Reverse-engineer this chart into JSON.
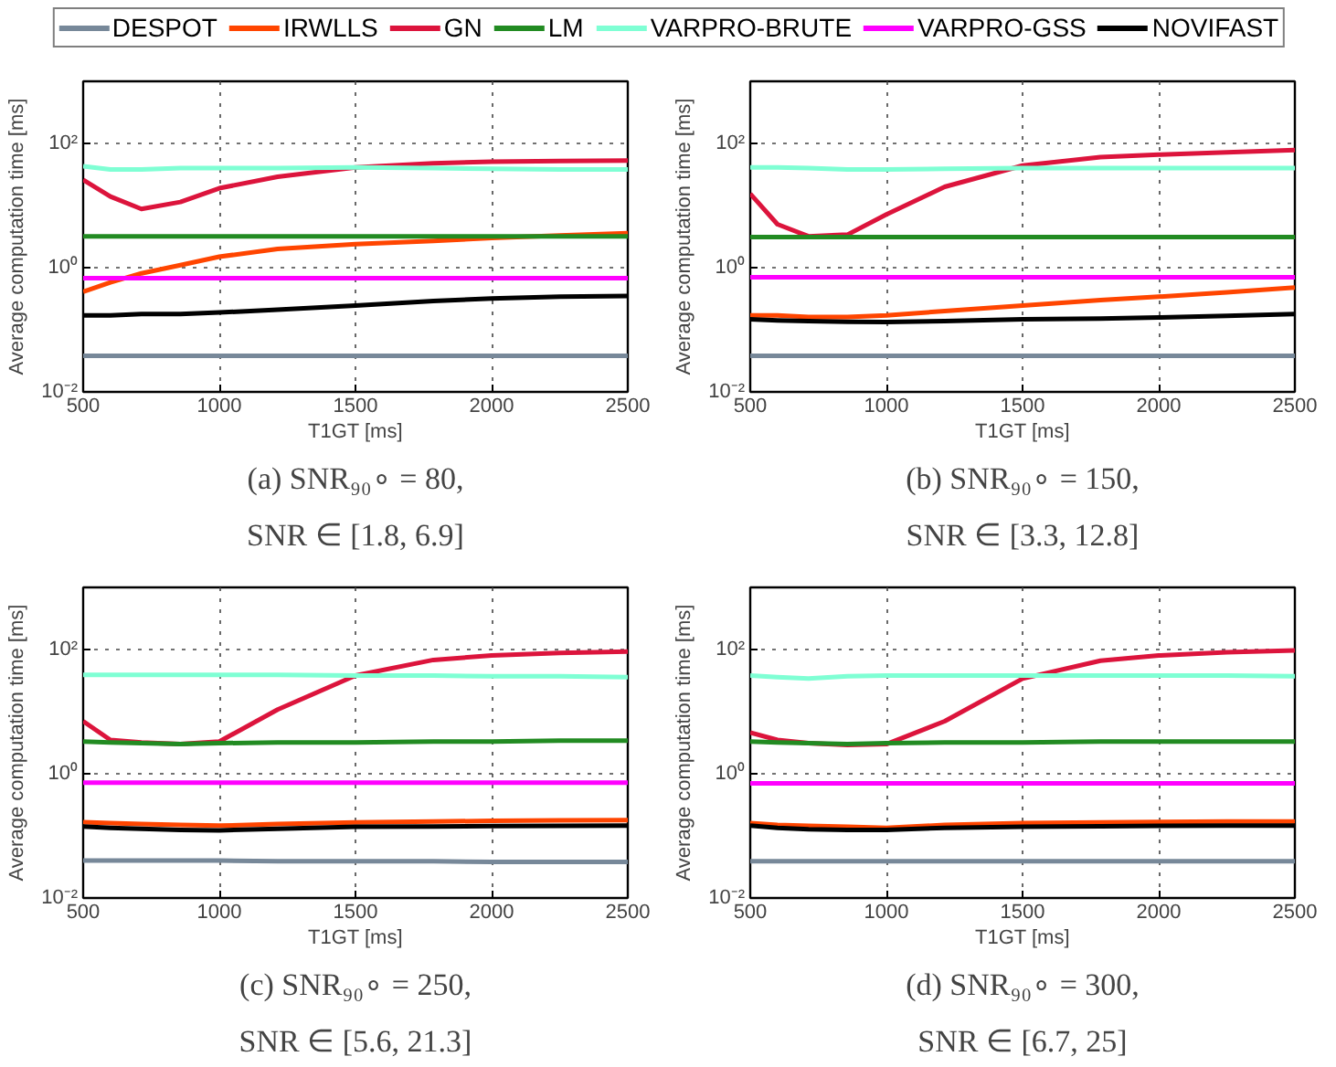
{
  "chart_data": [
    {
      "type": "line",
      "title": "(a) SNR₉₀∘ = 80,",
      "subtitle": "SNR ∈ [1.8, 6.9]",
      "xlabel": "T1GT [ms]",
      "ylabel": "Average computation time [ms]",
      "log": "y",
      "grid": true,
      "legend": "top",
      "line_style": "solid",
      "xlim": [
        500,
        2500
      ],
      "xticks": [
        500,
        1000,
        1500,
        2000,
        2500
      ],
      "ylim": [
        0.01,
        1000
      ],
      "yticks": [
        {
          "value": 0.01,
          "label": "10⁻²"
        },
        {
          "value": 1,
          "label": "10⁰"
        },
        {
          "value": 100,
          "label": "10²"
        }
      ],
      "x": [
        500,
        600,
        714,
        857,
        1000,
        1214,
        1500,
        1786,
        2000,
        2250,
        2500
      ],
      "series": [
        {
          "name": "DESPOT",
          "color": "#778899",
          "values": [
            0.038,
            0.038,
            0.038,
            0.038,
            0.038,
            0.038,
            0.038,
            0.038,
            0.038,
            0.038,
            0.038
          ]
        },
        {
          "name": "IRWLLS",
          "color": "#ff4500",
          "values": [
            0.41,
            0.58,
            0.81,
            1.1,
            1.5,
            2.0,
            2.4,
            2.7,
            3.0,
            3.3,
            3.6
          ]
        },
        {
          "name": "GN",
          "color": "#dc143c",
          "values": [
            26,
            14,
            8.8,
            11.4,
            19,
            29,
            41,
            48,
            51,
            52,
            53
          ]
        },
        {
          "name": "LM",
          "color": "#228b22",
          "values": [
            3.2,
            3.2,
            3.2,
            3.2,
            3.2,
            3.2,
            3.2,
            3.2,
            3.2,
            3.2,
            3.2
          ]
        },
        {
          "name": "VARPRO-BRUTE",
          "color": "#7fffd4",
          "values": [
            43,
            38,
            38,
            40,
            40,
            40,
            41,
            40,
            39,
            38,
            38
          ]
        },
        {
          "name": "VARPRO-GSS",
          "color": "#ff00ff",
          "values": [
            0.68,
            0.68,
            0.68,
            0.68,
            0.68,
            0.68,
            0.68,
            0.68,
            0.68,
            0.68,
            0.68
          ]
        },
        {
          "name": "NOVIFAST",
          "color": "#000000",
          "values": [
            0.17,
            0.17,
            0.18,
            0.18,
            0.19,
            0.21,
            0.245,
            0.29,
            0.32,
            0.34,
            0.35
          ]
        }
      ]
    },
    {
      "type": "line",
      "title": "(b) SNR₉₀∘ = 150,",
      "subtitle": "SNR ∈ [3.3, 12.8]",
      "xlabel": "T1GT [ms]",
      "ylabel": "Average computation time [ms]",
      "log": "y",
      "grid": true,
      "line_style": "solid",
      "xlim": [
        500,
        2500
      ],
      "xticks": [
        500,
        1000,
        1500,
        2000,
        2500
      ],
      "ylim": [
        0.01,
        1000
      ],
      "yticks": [
        {
          "value": 0.01,
          "label": "10⁻²"
        },
        {
          "value": 1,
          "label": "10⁰"
        },
        {
          "value": 100,
          "label": "10²"
        }
      ],
      "x": [
        500,
        600,
        714,
        857,
        1000,
        1214,
        1500,
        1786,
        2000,
        2250,
        2500
      ],
      "series": [
        {
          "color": "#778899",
          "values": [
            0.038,
            0.038,
            0.038,
            0.038,
            0.038,
            0.038,
            0.038,
            0.038,
            0.038,
            0.038,
            0.038
          ]
        },
        {
          "color": "#ff4500",
          "values": [
            0.17,
            0.17,
            0.16,
            0.16,
            0.17,
            0.2,
            0.245,
            0.3,
            0.34,
            0.4,
            0.48
          ]
        },
        {
          "color": "#dc143c",
          "values": [
            15.5,
            5,
            3.2,
            3.4,
            7.2,
            20,
            44,
            60,
            66,
            72,
            78
          ]
        },
        {
          "color": "#228b22",
          "values": [
            3.1,
            3.1,
            3.1,
            3.1,
            3.1,
            3.1,
            3.1,
            3.1,
            3.1,
            3.1,
            3.1
          ]
        },
        {
          "color": "#7fffd4",
          "values": [
            41,
            41,
            40,
            38,
            38,
            39,
            40,
            40,
            40,
            40,
            40
          ]
        },
        {
          "color": "#ff00ff",
          "values": [
            0.7,
            0.7,
            0.7,
            0.7,
            0.7,
            0.7,
            0.7,
            0.7,
            0.7,
            0.7,
            0.7
          ]
        },
        {
          "color": "#000000",
          "values": [
            0.147,
            0.142,
            0.138,
            0.135,
            0.133,
            0.138,
            0.147,
            0.152,
            0.158,
            0.168,
            0.18
          ]
        }
      ]
    },
    {
      "type": "line",
      "title": "(c) SNR₉₀∘ = 250,",
      "subtitle": "SNR ∈ [5.6, 21.3]",
      "xlabel": "T1GT [ms]",
      "ylabel": "Average computation time [ms]",
      "log": "y",
      "grid": true,
      "line_style": "solid",
      "xlim": [
        500,
        2500
      ],
      "xticks": [
        500,
        1000,
        1500,
        2000,
        2500
      ],
      "ylim": [
        0.01,
        1000
      ],
      "yticks": [
        {
          "value": 0.01,
          "label": "10⁻²"
        },
        {
          "value": 1,
          "label": "10⁰"
        },
        {
          "value": 100,
          "label": "10²"
        }
      ],
      "x": [
        500,
        600,
        714,
        857,
        1000,
        1214,
        1500,
        1786,
        2000,
        2250,
        2500
      ],
      "series": [
        {
          "color": "#778899",
          "values": [
            0.04,
            0.04,
            0.04,
            0.04,
            0.04,
            0.039,
            0.039,
            0.039,
            0.038,
            0.038,
            0.038
          ]
        },
        {
          "color": "#ff4500",
          "values": [
            0.166,
            0.16,
            0.155,
            0.15,
            0.146,
            0.155,
            0.165,
            0.17,
            0.175,
            0.178,
            0.18
          ]
        },
        {
          "color": "#dc143c",
          "values": [
            7,
            3.5,
            3.2,
            3.0,
            3.3,
            10.8,
            38,
            68,
            80,
            88,
            93
          ]
        },
        {
          "color": "#228b22",
          "values": [
            3.3,
            3.2,
            3.1,
            3.0,
            3.1,
            3.2,
            3.2,
            3.3,
            3.3,
            3.4,
            3.4
          ]
        },
        {
          "color": "#7fffd4",
          "values": [
            39,
            39,
            39,
            39,
            39,
            39,
            38,
            38,
            37,
            37,
            36
          ]
        },
        {
          "color": "#ff00ff",
          "values": [
            0.72,
            0.72,
            0.72,
            0.72,
            0.72,
            0.72,
            0.72,
            0.72,
            0.72,
            0.72,
            0.72
          ]
        },
        {
          "color": "#000000",
          "values": [
            0.142,
            0.135,
            0.13,
            0.125,
            0.123,
            0.13,
            0.14,
            0.142,
            0.144,
            0.145,
            0.146
          ]
        }
      ]
    },
    {
      "type": "line",
      "title": "(d) SNR₉₀∘ = 300,",
      "subtitle": "SNR ∈ [6.7, 25]",
      "xlabel": "T1GT [ms]",
      "ylabel": "Average computation time [ms]",
      "log": "y",
      "grid": true,
      "line_style": "solid",
      "xlim": [
        500,
        2500
      ],
      "xticks": [
        500,
        1000,
        1500,
        2000,
        2500
      ],
      "ylim": [
        0.01,
        1000
      ],
      "yticks": [
        {
          "value": 0.01,
          "label": "10⁻²"
        },
        {
          "value": 1,
          "label": "10⁰"
        },
        {
          "value": 100,
          "label": "10²"
        }
      ],
      "x": [
        500,
        600,
        714,
        857,
        1000,
        1214,
        1500,
        1786,
        2000,
        2250,
        2500
      ],
      "series": [
        {
          "color": "#778899",
          "values": [
            0.039,
            0.039,
            0.039,
            0.039,
            0.039,
            0.039,
            0.039,
            0.039,
            0.039,
            0.039,
            0.039
          ]
        },
        {
          "color": "#ff4500",
          "values": [
            0.16,
            0.15,
            0.145,
            0.14,
            0.135,
            0.15,
            0.16,
            0.165,
            0.168,
            0.17,
            0.17
          ]
        },
        {
          "color": "#dc143c",
          "values": [
            4.6,
            3.5,
            3.1,
            2.9,
            3.0,
            7,
            34,
            66,
            80,
            90,
            97
          ]
        },
        {
          "color": "#228b22",
          "values": [
            3.3,
            3.2,
            3.1,
            3.0,
            3.1,
            3.2,
            3.2,
            3.3,
            3.3,
            3.3,
            3.3
          ]
        },
        {
          "color": "#7fffd4",
          "values": [
            38,
            36,
            34,
            37,
            38,
            38,
            38,
            38,
            38,
            38,
            37
          ]
        },
        {
          "color": "#ff00ff",
          "values": [
            0.7,
            0.7,
            0.7,
            0.7,
            0.7,
            0.7,
            0.7,
            0.7,
            0.7,
            0.7,
            0.7
          ]
        },
        {
          "color": "#000000",
          "values": [
            0.146,
            0.135,
            0.128,
            0.125,
            0.125,
            0.135,
            0.14,
            0.143,
            0.145,
            0.146,
            0.146
          ]
        }
      ]
    }
  ]
}
